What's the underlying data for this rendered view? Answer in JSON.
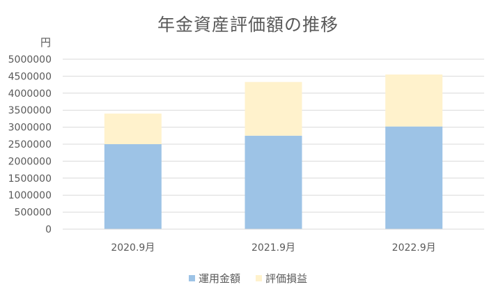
{
  "chart_data": {
    "type": "bar",
    "stacked": true,
    "title": "年金資産評価額の推移",
    "y_unit": "円",
    "categories": [
      "2020.9月",
      "2021.9月",
      "2022.9月"
    ],
    "series": [
      {
        "name": "運用金額",
        "values": [
          2500000,
          2750000,
          3020000
        ],
        "color": "#9DC3E6"
      },
      {
        "name": "評価損益",
        "values": [
          900000,
          1580000,
          1530000
        ],
        "color": "#FFF2CC"
      }
    ],
    "ylim": [
      0,
      5000000
    ],
    "y_ticks": [
      "0",
      "500000",
      "1000000",
      "1500000",
      "2000000",
      "2500000",
      "3000000",
      "3500000",
      "4000000",
      "4500000",
      "5000000"
    ],
    "grid": true,
    "legend_position": "bottom",
    "gridline_color": "#D9D9D9"
  }
}
